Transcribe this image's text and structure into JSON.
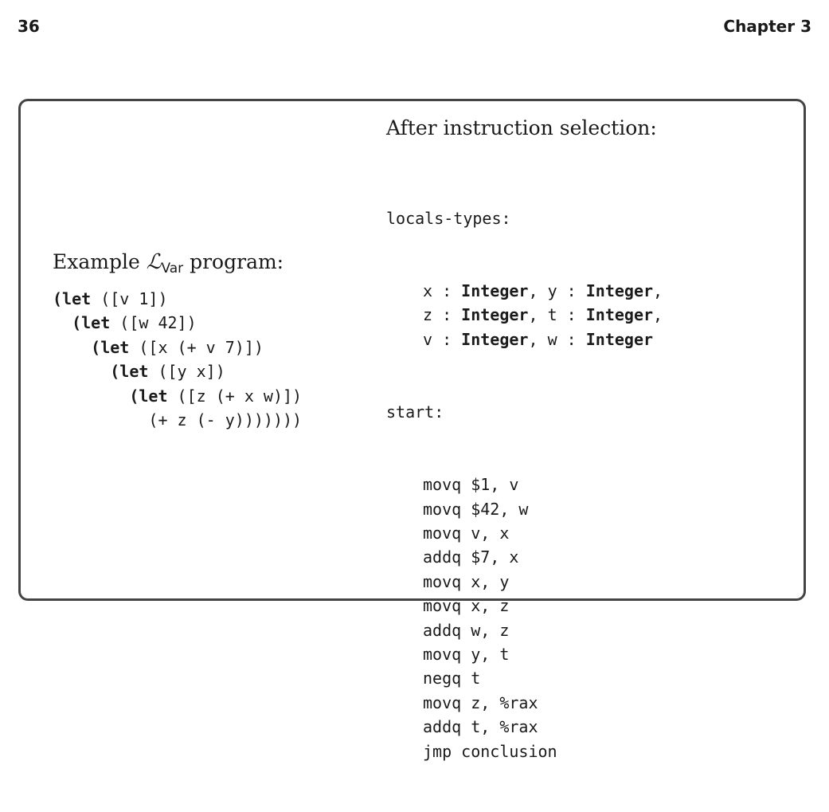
{
  "page": {
    "number": "36",
    "chapter": "Chapter 3"
  },
  "left": {
    "caption_prefix": "Example ",
    "lang_script": "ℒ",
    "lang_sub": "Var",
    "caption_suffix": " program:",
    "program_lines": [
      {
        "indent": "",
        "kw": "(let",
        "rest": " ([v 1])"
      },
      {
        "indent": "  ",
        "kw": "(let",
        "rest": " ([w 42])"
      },
      {
        "indent": "    ",
        "kw": "(let",
        "rest": " ([x (+ v 7)])"
      },
      {
        "indent": "      ",
        "kw": "(let",
        "rest": " ([y x])"
      },
      {
        "indent": "        ",
        "kw": "(let",
        "rest": " ([z (+ x w)])"
      },
      {
        "indent": "          ",
        "kw": "",
        "rest": "(+ z (- y)))))))"
      }
    ]
  },
  "right": {
    "caption": "After instruction selection:",
    "locals_label": "locals-types:",
    "locals_lines": [
      {
        "a": "x",
        "sep1": " : ",
        "ta": "Integer",
        "comma": ", ",
        "b": "y",
        "sep2": " : ",
        "tb": "Integer",
        "end": ","
      },
      {
        "a": "z",
        "sep1": " : ",
        "ta": "Integer",
        "comma": ", ",
        "b": "t",
        "sep2": " : ",
        "tb": "Integer",
        "end": ","
      },
      {
        "a": "v",
        "sep1": " : ",
        "ta": "Integer",
        "comma": ", ",
        "b": "w",
        "sep2": " : ",
        "tb": "Integer",
        "end": ""
      }
    ],
    "start_label": "start:",
    "instructions": [
      "movq $1, v",
      "movq $42, w",
      "movq v, x",
      "addq $7, x",
      "movq x, y",
      "movq x, z",
      "addq w, z",
      "movq y, t",
      "negq t",
      "movq z, %rax",
      "addq t, %rax",
      "jmp conclusion"
    ]
  }
}
